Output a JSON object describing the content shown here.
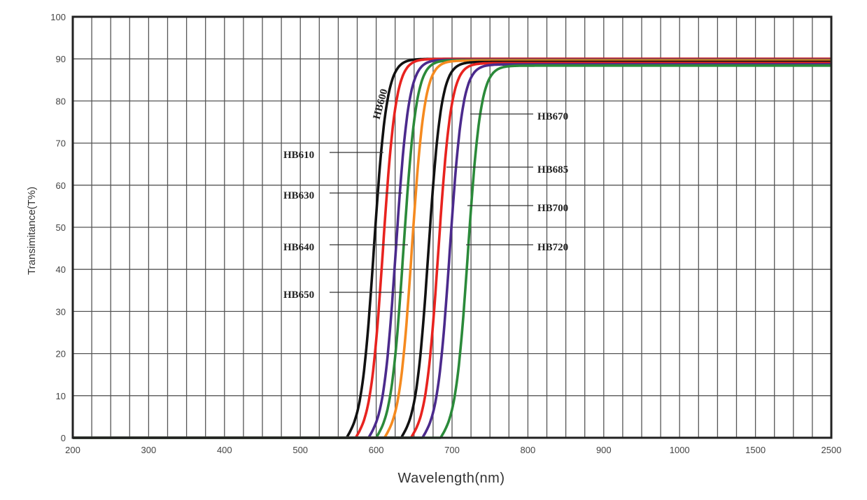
{
  "chart_data": {
    "type": "line",
    "title": "",
    "xlabel": "Wavelength(nm)",
    "ylabel": "Transimitance(T%)",
    "x_ticks": [
      "200",
      "300",
      "400",
      "500",
      "600",
      "700",
      "800",
      "900",
      "1000",
      "1500",
      "2500"
    ],
    "y_ticks": [
      "0",
      "10",
      "20",
      "30",
      "40",
      "50",
      "60",
      "70",
      "80",
      "90",
      "100"
    ],
    "ylim": [
      0,
      100
    ],
    "grid": true,
    "legend": "none",
    "series": [
      {
        "name": "HB600",
        "color": "#111111",
        "half_point_nm": 597,
        "plateau": 90
      },
      {
        "name": "HB610",
        "color": "#e8231f",
        "half_point_nm": 609,
        "plateau": 90
      },
      {
        "name": "HB630",
        "color": "#4b2a8c",
        "half_point_nm": 626,
        "plateau": 89.8
      },
      {
        "name": "HB640",
        "color": "#2b8a3a",
        "half_point_nm": 636,
        "plateau": 89.7
      },
      {
        "name": "HB650",
        "color": "#f58a1f",
        "half_point_nm": 647,
        "plateau": 89.6
      },
      {
        "name": "HB670",
        "color": "#111111",
        "half_point_nm": 669,
        "plateau": 89.3
      },
      {
        "name": "HB685",
        "color": "#e8231f",
        "half_point_nm": 682,
        "plateau": 89
      },
      {
        "name": "HB700",
        "color": "#4b2a8c",
        "half_point_nm": 697,
        "plateau": 88.7
      },
      {
        "name": "HB720",
        "color": "#2b8a3a",
        "half_point_nm": 721,
        "plateau": 88.4
      }
    ],
    "labels": [
      {
        "text": "HB600"
      },
      {
        "text": "HB610"
      },
      {
        "text": "HB630"
      },
      {
        "text": "HB640"
      },
      {
        "text": "HB650"
      },
      {
        "text": "HB670"
      },
      {
        "text": "HB685"
      },
      {
        "text": "HB700"
      },
      {
        "text": "HB720"
      }
    ]
  }
}
